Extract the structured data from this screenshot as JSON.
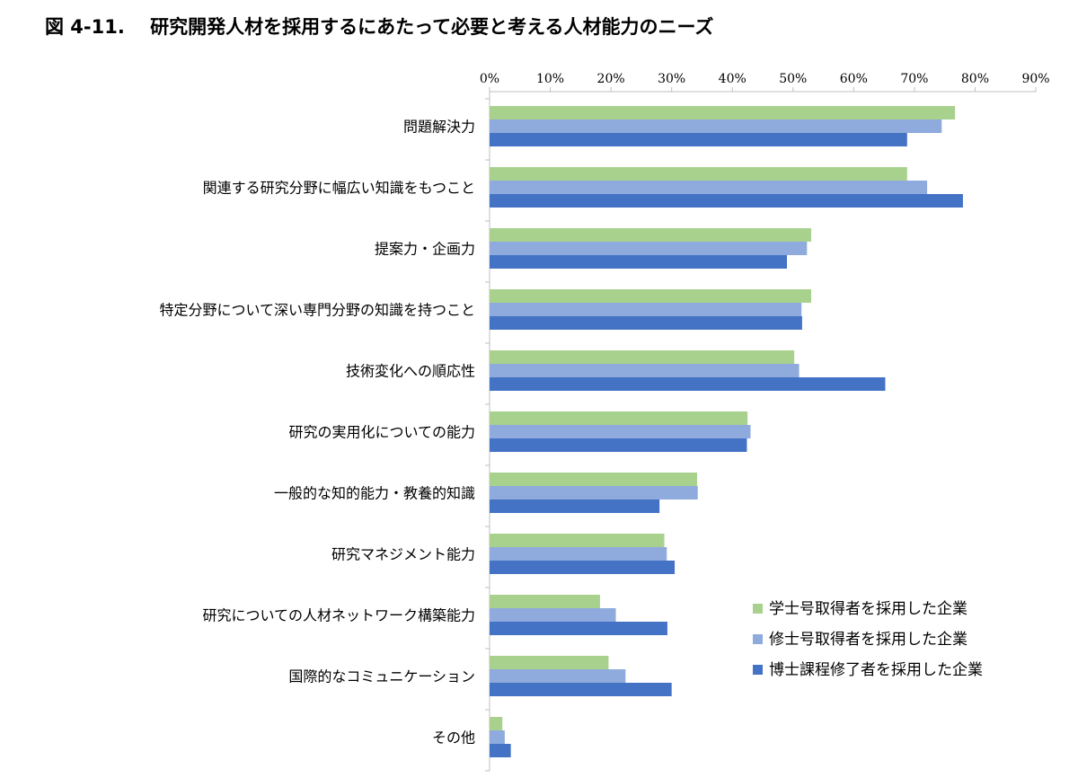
{
  "title": "図 4-11.　 研究開発人材を採用するにあたって必要と考える人材能力のニーズ",
  "chart_data": {
    "type": "bar",
    "orientation": "horizontal",
    "title": "図 4-11.　 研究開発人材を採用するにあたって必要と考える人材能力のニーズ",
    "xlim": [
      0,
      90
    ],
    "tick_values": [
      0,
      10,
      20,
      30,
      40,
      50,
      60,
      70,
      80,
      90
    ],
    "tick_labels": [
      "0%",
      "10%",
      "20%",
      "30%",
      "40%",
      "50%",
      "60%",
      "70%",
      "80%",
      "90%"
    ],
    "axis_position": "top",
    "grid": false,
    "legend_position": "bottom-right",
    "categories": [
      "問題解決力",
      "関連する研究分野に幅広い知識をもつこと",
      "提案力・企画力",
      "特定分野について深い専門分野の知識を持つこと",
      "技術変化への順応性",
      "研究の実用化についての能力",
      "一般的な知的能力・教養的知識",
      "研究マネジメント能力",
      "研究についての人材ネットワーク構築能力",
      "国際的なコミュニケーション",
      "その他"
    ],
    "series": [
      {
        "name": "学士号取得者を採用した企業",
        "color": "#a9d18e",
        "values": [
          76.7,
          68.8,
          53.0,
          53.0,
          50.2,
          42.5,
          34.2,
          28.8,
          18.2,
          19.6,
          2.1
        ]
      },
      {
        "name": "修士号取得者を採用した企業",
        "color": "#8faadc",
        "values": [
          74.5,
          72.1,
          52.3,
          51.4,
          51.0,
          43.0,
          34.3,
          29.2,
          20.8,
          22.4,
          2.5
        ]
      },
      {
        "name": "博士課程修了者を採用した企業",
        "color": "#4472c4",
        "values": [
          68.8,
          78.0,
          49.0,
          51.5,
          65.2,
          42.4,
          28.0,
          30.5,
          29.3,
          30.0,
          3.5
        ]
      }
    ]
  }
}
